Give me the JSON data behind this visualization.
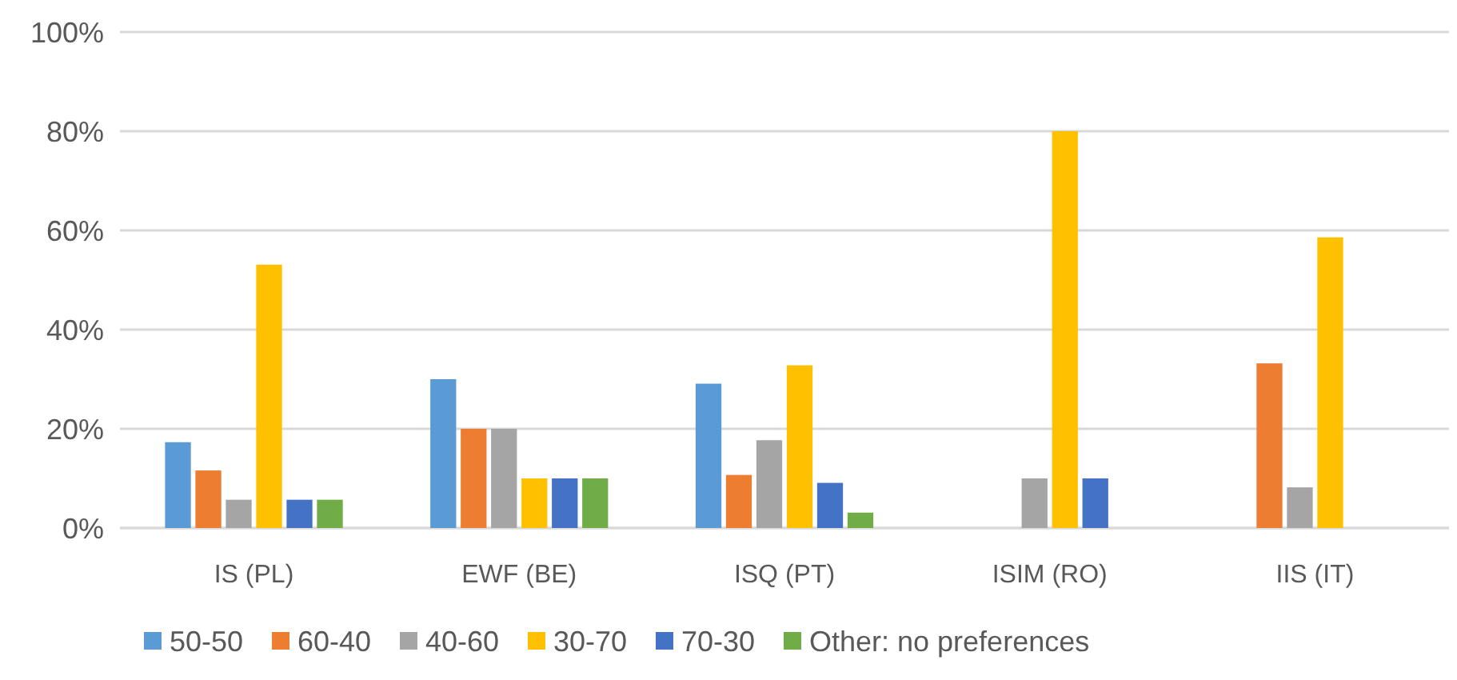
{
  "chart_data": {
    "type": "bar",
    "categories": [
      "IS (PL)",
      "EWF (BE)",
      "ISQ (PT)",
      "ISIM (RO)",
      "IIS (IT)"
    ],
    "series": [
      {
        "name": "50-50",
        "color": "#5b9bd5",
        "values": [
          17.3,
          30,
          29.1,
          null,
          null
        ]
      },
      {
        "name": "60-40",
        "color": "#ed7d31",
        "values": [
          11.6,
          20,
          10.7,
          null,
          33.2
        ]
      },
      {
        "name": "40-60",
        "color": "#a5a5a5",
        "values": [
          5.7,
          20,
          17.7,
          10,
          8.2
        ]
      },
      {
        "name": "30-70",
        "color": "#ffc000",
        "values": [
          53.1,
          10,
          32.8,
          80,
          58.6
        ]
      },
      {
        "name": "70-30",
        "color": "#4472c4",
        "values": [
          5.7,
          10,
          9.1,
          10,
          null
        ]
      },
      {
        "name": "Other: no preferences",
        "color": "#70ad47",
        "values": [
          5.7,
          10,
          3.1,
          null,
          null
        ]
      }
    ],
    "ylim": [
      0,
      100
    ],
    "yticks": [
      {
        "value": 0,
        "label": "0%"
      },
      {
        "value": 20,
        "label": "20%"
      },
      {
        "value": 40,
        "label": "40%"
      },
      {
        "value": 60,
        "label": "60%"
      },
      {
        "value": 80,
        "label": "80%"
      },
      {
        "value": 100,
        "label": "100%"
      }
    ],
    "grid": "y",
    "legend": "bottom"
  }
}
